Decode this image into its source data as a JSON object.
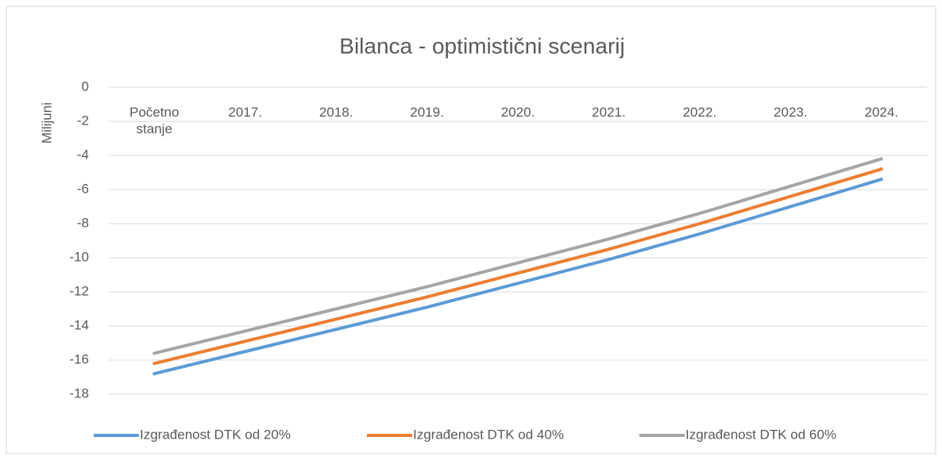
{
  "chart_data": {
    "type": "line",
    "title": "Bilanca - optimistični scenarij",
    "y_label": "Milijuni",
    "categories": [
      "Početno stanje",
      "2017.",
      "2018.",
      "2019.",
      "2020.",
      "2021.",
      "2022.",
      "2023.",
      "2024."
    ],
    "series": [
      {
        "name": "Izgrađenost DTK od 20%",
        "color": "#5b9bd5",
        "values": [
          -16.8,
          -15.5,
          -14.2,
          -12.9,
          -11.5,
          -10.1,
          -8.6,
          -7.0,
          -5.4
        ]
      },
      {
        "name": "Izgrađenost DTK od 40%",
        "color": "#ed7d31",
        "values": [
          -16.2,
          -14.9,
          -13.6,
          -12.3,
          -10.9,
          -9.5,
          -8.0,
          -6.4,
          -4.8
        ]
      },
      {
        "name": "Izgrađenost DTK od 60%",
        "color": "#a5a5a5",
        "values": [
          -15.6,
          -14.3,
          -13.0,
          -11.7,
          -10.3,
          -8.9,
          -7.4,
          -5.8,
          -4.2
        ]
      }
    ],
    "ylim": [
      -18,
      0
    ],
    "yticks": [
      0,
      -2,
      -4,
      -6,
      -8,
      -10,
      -12,
      -14,
      -16,
      -18
    ],
    "grid": true,
    "legend": "bottom"
  }
}
